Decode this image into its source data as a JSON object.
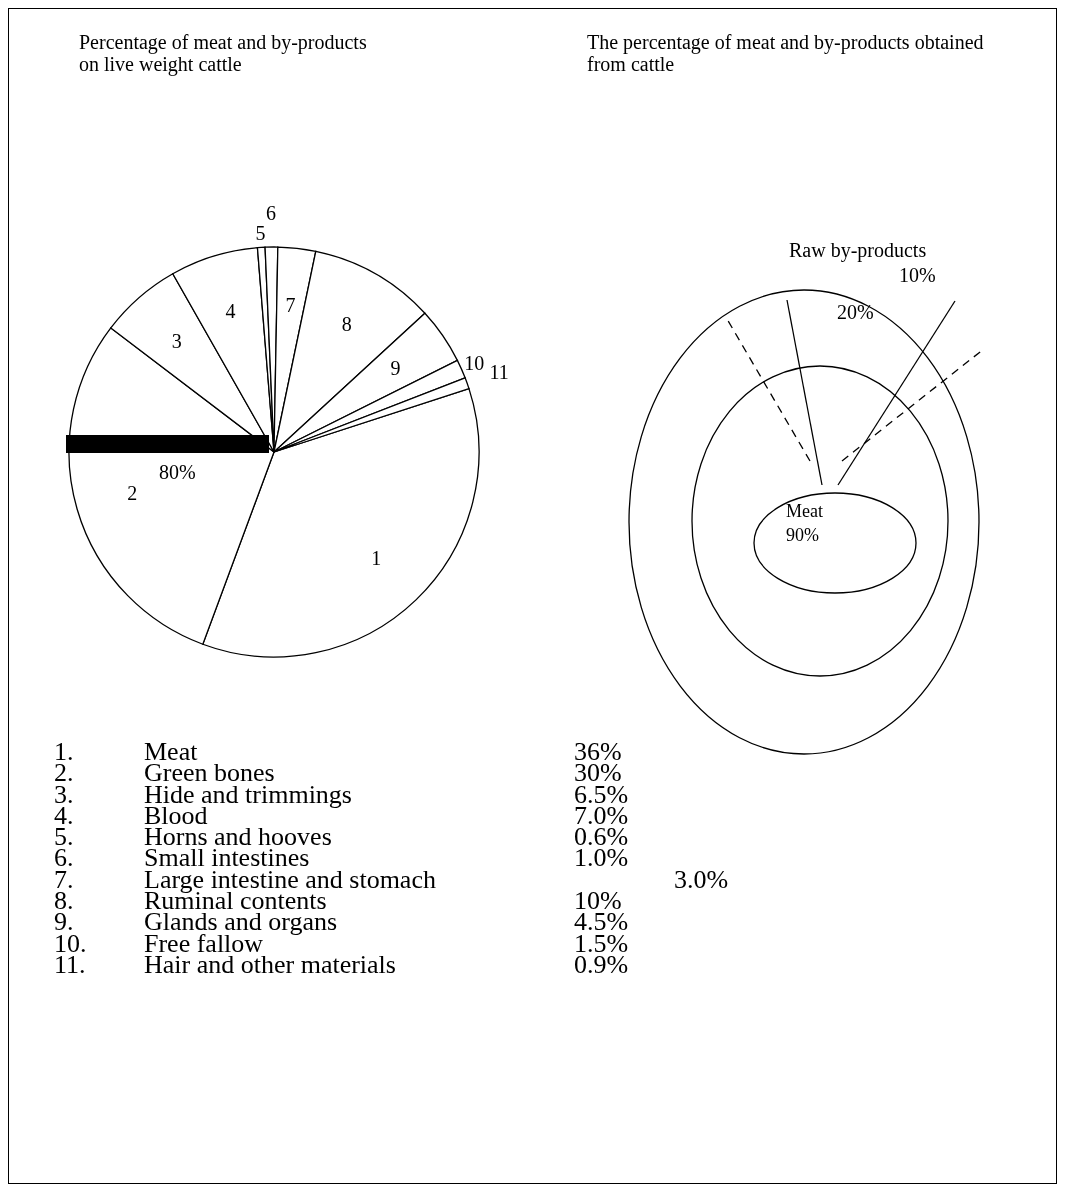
{
  "chart_data": [
    {
      "type": "pie",
      "title": "Percentage of meat and by-products on live weight cattle",
      "categories": [
        "1",
        "2",
        "3",
        "4",
        "5",
        "6",
        "7",
        "8",
        "9",
        "10",
        "11"
      ],
      "values": [
        36,
        30,
        6.5,
        7.0,
        0.6,
        1.0,
        3.0,
        10,
        4.5,
        1.5,
        0.9
      ],
      "colors": [
        "#ffffff",
        "#ffffff",
        "#ffffff",
        "#ffffff",
        "#ffffff",
        "#ffffff",
        "#ffffff",
        "#ffffff",
        "#ffffff",
        "#ffffff",
        "#ffffff"
      ],
      "annotations": [
        "80%",
        "1.",
        "Meat",
        "36%",
        "2.",
        "Green bones",
        "30%",
        "3.",
        "Hide and trimmings",
        "6.5%",
        "4.",
        "Blood",
        "7.0%",
        "5.",
        "Horns and hooves",
        "0.6%",
        "6.",
        "Small intestines",
        "1.0%",
        "7.",
        "Large intestine and stomach",
        "3.0%",
        "8.",
        "Ruminal contents",
        "10%",
        "9.",
        "Glands and organs",
        "4.5%",
        "10.",
        "Free fallow",
        "1.5%",
        "11.",
        "Hair and other materials",
        "0.9%"
      ]
    },
    {
      "type": "other",
      "title": "The percentage of meat and by-products obtained from cattle",
      "annotations": [
        "Raw by-products",
        "10%",
        "20%",
        "Meat",
        "90%"
      ]
    }
  ]
}
